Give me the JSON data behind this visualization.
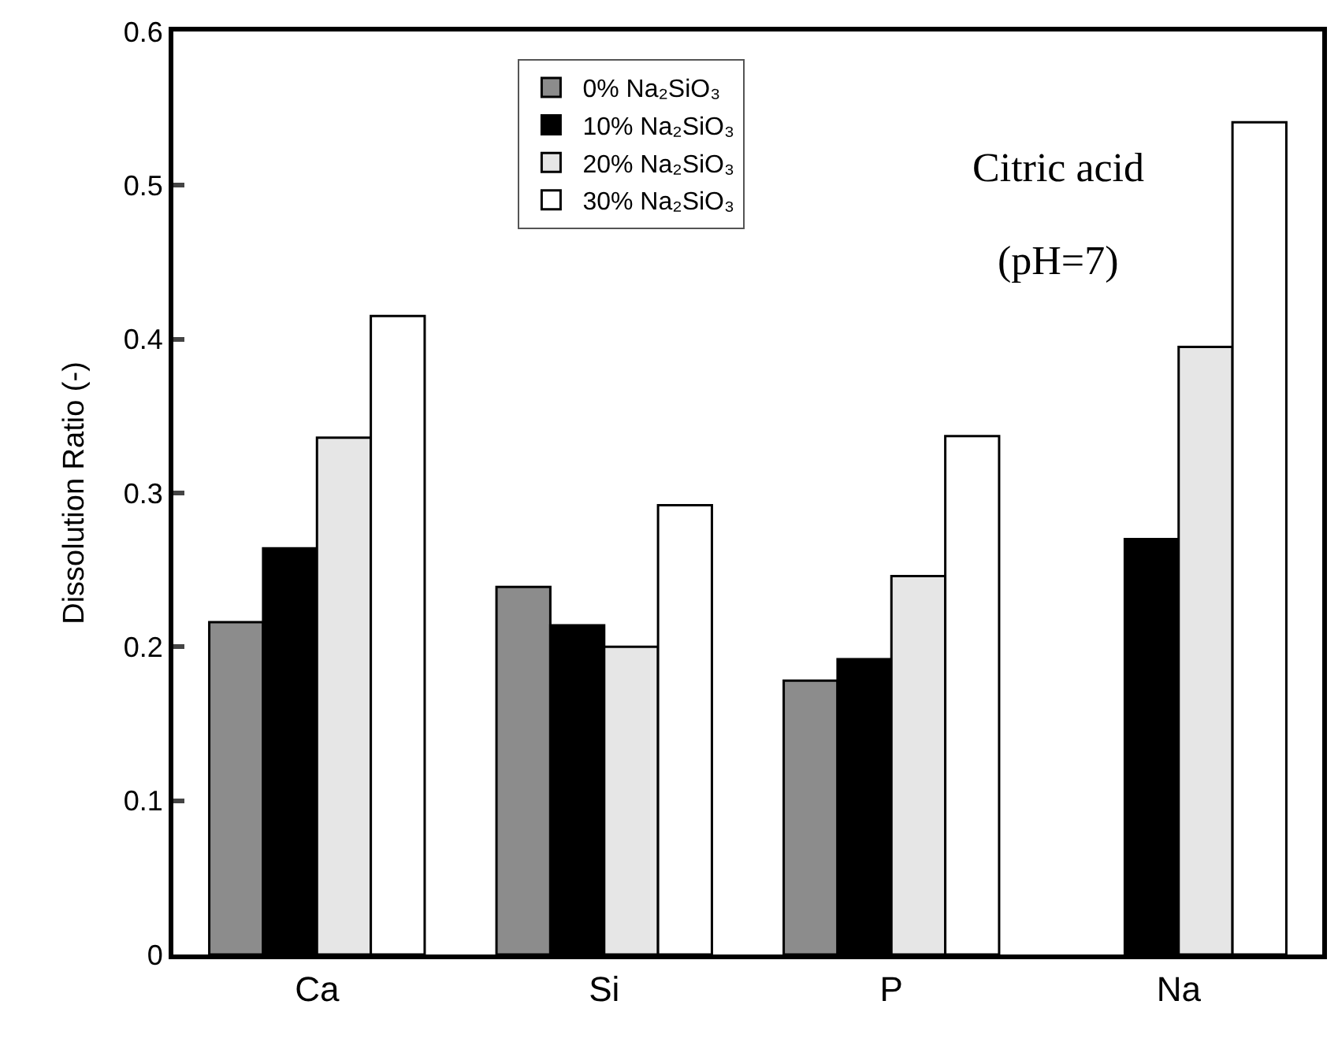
{
  "chart_data": {
    "type": "bar",
    "ylabel": "Dissolution Ratio (-)",
    "categories": [
      "Ca",
      "Si",
      "P",
      "Na"
    ],
    "series": [
      {
        "name": "0% Na₂SiO₃",
        "color": "#8c8c8c",
        "values": [
          0.216,
          0.239,
          0.178,
          null
        ]
      },
      {
        "name": "10% Na₂SiO₃",
        "color": "#000000",
        "values": [
          0.264,
          0.214,
          0.192,
          0.27
        ]
      },
      {
        "name": "20% Na₂SiO₃",
        "color": "#e6e6e6",
        "values": [
          0.336,
          0.2,
          0.246,
          0.395
        ]
      },
      {
        "name": "30% Na₂SiO₃",
        "color": "#ffffff",
        "values": [
          0.415,
          0.292,
          0.337,
          0.541
        ]
      }
    ],
    "ylim": [
      0,
      0.6
    ],
    "yticks": [
      0,
      0.1,
      0.2,
      0.3,
      0.4,
      0.5,
      0.6
    ],
    "grid": false,
    "legend": "top",
    "annotations": [
      "Citric acid",
      "(pH=7)"
    ]
  }
}
